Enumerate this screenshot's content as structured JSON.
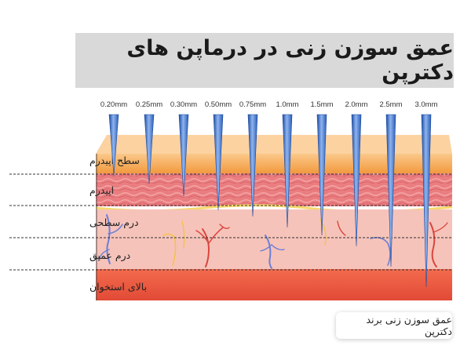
{
  "title": "عمق سوزن زنی در درماپن های دکترپن",
  "caption": "عمق سوزن زنی  برند دکترپن",
  "needle_depths": [
    "0.20mm",
    "0.25mm",
    "0.30mm",
    "0.50mm",
    "0.75mm",
    "1.0mm",
    "1.5mm",
    "2.0mm",
    "2.5mm",
    "3.0mm"
  ],
  "layer_labels": [
    "سطح اپیدرم",
    "اپیدرم",
    "درم سطحی",
    "درم عمیق",
    "بالای استخوان"
  ],
  "colors": {
    "needle": "#3a6fc4",
    "surface": "#f5a44a",
    "epidermis": "#e97a7d",
    "dermis": "#f6c1b8",
    "bone": "#ec5a43"
  }
}
